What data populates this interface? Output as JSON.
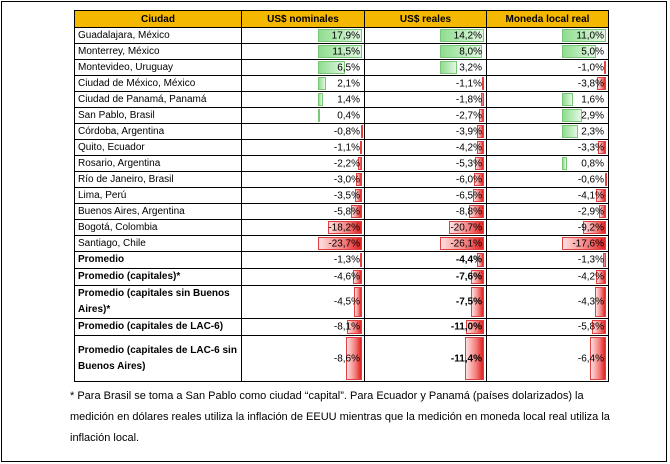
{
  "headers": [
    "Ciudad",
    "US$ nominales",
    "US$ reales",
    "Moneda local real"
  ],
  "rows": [
    {
      "city": "Guadalajara, México",
      "v": [
        "17,9%",
        "14,2%",
        "11,0%"
      ],
      "n": [
        17.9,
        14.2,
        11.0
      ]
    },
    {
      "city": "Monterrey, México",
      "v": [
        "11,5%",
        "8,0%",
        "5,0%"
      ],
      "n": [
        11.5,
        8.0,
        5.0
      ]
    },
    {
      "city": "Montevideo, Uruguay",
      "v": [
        "6,5%",
        "3,2%",
        "-1,0%"
      ],
      "n": [
        6.5,
        3.2,
        -1.0
      ]
    },
    {
      "city": "Ciudad de México, México",
      "v": [
        "2,1%",
        "-1,1%",
        "-3,8%"
      ],
      "n": [
        2.1,
        -1.1,
        -3.8
      ]
    },
    {
      "city": "Ciudad de Panamá, Panamá",
      "v": [
        "1,4%",
        "-1,8%",
        "1,6%"
      ],
      "n": [
        1.4,
        -1.8,
        1.6
      ]
    },
    {
      "city": "San Pablo, Brasil",
      "v": [
        "0,4%",
        "-2,7%",
        "2,9%"
      ],
      "n": [
        0.4,
        -2.7,
        2.9
      ]
    },
    {
      "city": "Córdoba, Argentina",
      "v": [
        "-0,8%",
        "-3,9%",
        "2,3%"
      ],
      "n": [
        -0.8,
        -3.9,
        2.3
      ]
    },
    {
      "city": "Quito, Ecuador",
      "v": [
        "-1,1%",
        "-4,2%",
        "-3,3%"
      ],
      "n": [
        -1.1,
        -4.2,
        -3.3
      ]
    },
    {
      "city": "Rosario, Argentina",
      "v": [
        "-2,2%",
        "-5,3%",
        "0,8%"
      ],
      "n": [
        -2.2,
        -5.3,
        0.8
      ]
    },
    {
      "city": "Río de Janeiro, Brasil",
      "v": [
        "-3,0%",
        "-6,0%",
        "-0,6%"
      ],
      "n": [
        -3.0,
        -6.0,
        -0.6
      ]
    },
    {
      "city": "Lima, Perú",
      "v": [
        "-3,5%",
        "-6,5%",
        "-4,1%"
      ],
      "n": [
        -3.5,
        -6.5,
        -4.1
      ]
    },
    {
      "city": "Buenos Aires, Argentina",
      "v": [
        "-5,8%",
        "-8,8%",
        "-2,9%"
      ],
      "n": [
        -5.8,
        -8.8,
        -2.9
      ]
    },
    {
      "city": "Bogotá, Colombia",
      "v": [
        "-18,2%",
        "-20,7%",
        "-9,2%"
      ],
      "n": [
        -18.2,
        -20.7,
        -9.2
      ]
    },
    {
      "city": "Santiago, Chile",
      "v": [
        "-23,7%",
        "-26,1%",
        "-17,6%"
      ],
      "n": [
        -23.7,
        -26.1,
        -17.6
      ]
    }
  ],
  "summary": [
    {
      "city": "Promedio",
      "v": [
        "-1,3%",
        "-4,4%",
        "-1,3%"
      ],
      "n": [
        -1.3,
        -4.4,
        -1.3
      ],
      "tall": 0
    },
    {
      "city": "Promedio (capitales)*",
      "v": [
        "-4,6%",
        "-7,6%",
        "-4,2%"
      ],
      "n": [
        -4.6,
        -7.6,
        -4.2
      ],
      "tall": 0
    },
    {
      "city": "Promedio (capitales sin Buenos Aires)*",
      "v": [
        "-4,5%",
        "-7,5%",
        "-4,3%"
      ],
      "n": [
        -4.5,
        -7.5,
        -4.3
      ],
      "tall": 1
    },
    {
      "city": "Promedio (capitales de LAC-6)",
      "v": [
        "-8,1%",
        "-11,0%",
        "-5,8%"
      ],
      "n": [
        -8.1,
        -11.0,
        -5.8
      ],
      "tall": 0
    },
    {
      "city": "Promedio (capitales de LAC-6 sin Buenos Aires)",
      "v": [
        "-8,6%",
        "-11,4%",
        "-6,4%"
      ],
      "n": [
        -8.6,
        -11.4,
        -6.4
      ],
      "tall": 2
    }
  ],
  "colors": {
    "header_bg": "#f5b800",
    "positive_bar": "#8fdd8f",
    "negative_bar": "#e02121"
  },
  "footnote": "* Para Brasil se toma a San Pablo como ciudad “capital”. Para Ecuador y Panamá (países dolarizados) la medición en dólares reales utiliza la inflación de EEUU mientras que la medición en moneda local real utiliza la inflación local."
}
